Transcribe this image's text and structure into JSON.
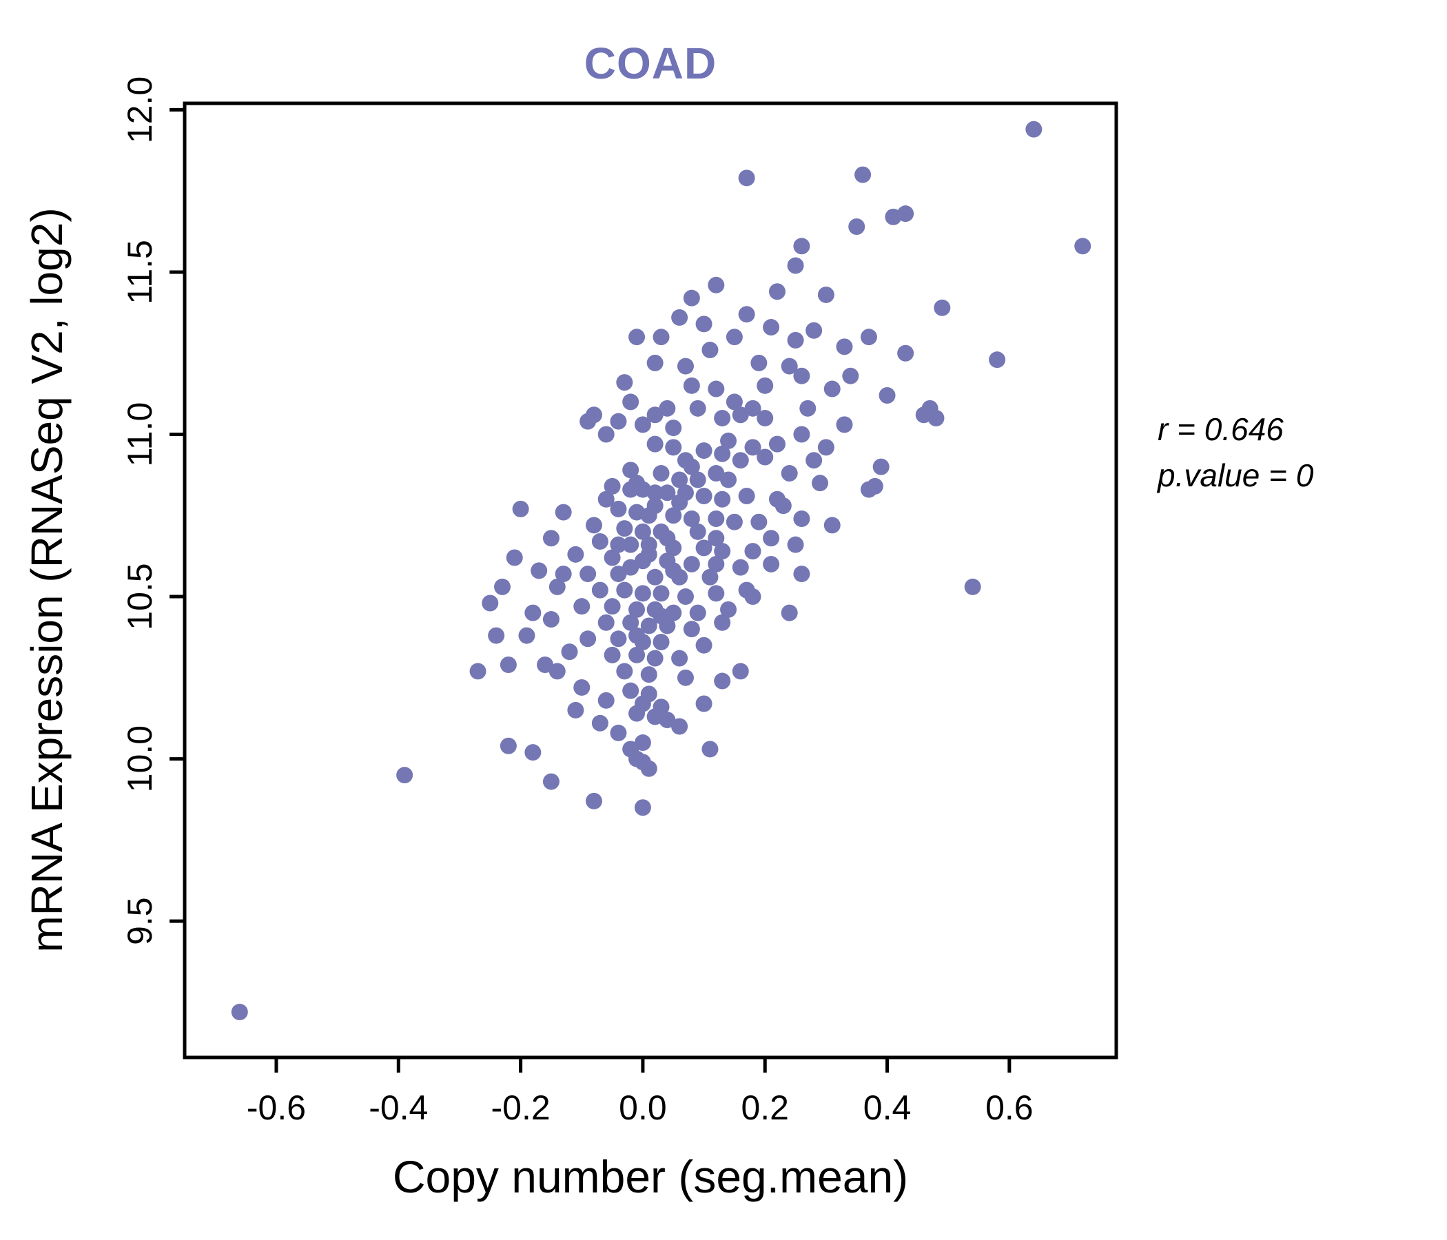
{
  "chart_data": {
    "type": "scatter",
    "title": "COAD",
    "xlabel": "Copy number (seg.mean)",
    "ylabel": "mRNA Expression (RNASeq V2, log2)",
    "xlim": [
      -0.75,
      0.775
    ],
    "ylim": [
      9.08,
      12.02
    ],
    "xticks": [
      -0.6,
      -0.4,
      -0.2,
      0.0,
      0.2,
      0.4,
      0.6
    ],
    "xtick_labels": [
      "-0.6",
      "-0.4",
      "-0.2",
      "0.0",
      "0.2",
      "0.4",
      "0.6"
    ],
    "yticks": [
      9.5,
      10.0,
      10.5,
      11.0,
      11.5,
      12.0
    ],
    "ytick_labels": [
      "9.5",
      "10.0",
      "10.5",
      "11.0",
      "11.5",
      "12.0"
    ],
    "legend": "none",
    "grid": false,
    "point_color": "#7477b3",
    "title_color": "#7073b5",
    "annotation": {
      "line1": "r = 0.646",
      "line2": "p.value = 0"
    },
    "points": [
      [
        -0.66,
        9.22
      ],
      [
        -0.39,
        9.95
      ],
      [
        -0.15,
        9.93
      ],
      [
        -0.08,
        9.87
      ],
      [
        0.0,
        9.85
      ],
      [
        -0.22,
        10.04
      ],
      [
        -0.18,
        10.02
      ],
      [
        -0.02,
        10.03
      ],
      [
        0.11,
        10.03
      ],
      [
        -0.01,
        10.0
      ],
      [
        0.0,
        9.99
      ],
      [
        0.01,
        9.97
      ],
      [
        -0.04,
        10.08
      ],
      [
        0.0,
        10.05
      ],
      [
        -0.07,
        10.11
      ],
      [
        0.06,
        10.1
      ],
      [
        -0.11,
        10.15
      ],
      [
        -0.01,
        10.14
      ],
      [
        0.02,
        10.13
      ],
      [
        0.04,
        10.12
      ],
      [
        -0.06,
        10.18
      ],
      [
        0.0,
        10.17
      ],
      [
        0.03,
        10.16
      ],
      [
        0.1,
        10.17
      ],
      [
        -0.1,
        10.22
      ],
      [
        -0.02,
        10.21
      ],
      [
        0.01,
        10.2
      ],
      [
        0.13,
        10.24
      ],
      [
        -0.27,
        10.27
      ],
      [
        -0.22,
        10.29
      ],
      [
        -0.16,
        10.29
      ],
      [
        -0.14,
        10.27
      ],
      [
        -0.03,
        10.27
      ],
      [
        0.01,
        10.26
      ],
      [
        0.16,
        10.27
      ],
      [
        0.07,
        10.25
      ],
      [
        -0.12,
        10.33
      ],
      [
        -0.05,
        10.32
      ],
      [
        -0.01,
        10.32
      ],
      [
        0.02,
        10.31
      ],
      [
        0.06,
        10.31
      ],
      [
        0.1,
        10.35
      ],
      [
        -0.19,
        10.38
      ],
      [
        -0.09,
        10.37
      ],
      [
        -0.04,
        10.37
      ],
      [
        0.0,
        10.36
      ],
      [
        0.03,
        10.36
      ],
      [
        -0.01,
        10.38
      ],
      [
        -0.24,
        10.38
      ],
      [
        -0.15,
        10.43
      ],
      [
        -0.06,
        10.42
      ],
      [
        -0.02,
        10.42
      ],
      [
        0.01,
        10.41
      ],
      [
        0.04,
        10.41
      ],
      [
        0.08,
        10.4
      ],
      [
        0.13,
        10.42
      ],
      [
        0.03,
        10.44
      ],
      [
        0.24,
        10.45
      ],
      [
        -0.18,
        10.45
      ],
      [
        -0.25,
        10.48
      ],
      [
        -0.1,
        10.47
      ],
      [
        -0.05,
        10.47
      ],
      [
        -0.01,
        10.46
      ],
      [
        0.02,
        10.46
      ],
      [
        0.05,
        10.45
      ],
      [
        0.09,
        10.45
      ],
      [
        0.14,
        10.46
      ],
      [
        -0.23,
        10.53
      ],
      [
        -0.14,
        10.53
      ],
      [
        -0.07,
        10.52
      ],
      [
        -0.03,
        10.52
      ],
      [
        0.0,
        10.51
      ],
      [
        0.03,
        10.51
      ],
      [
        0.07,
        10.5
      ],
      [
        0.12,
        10.51
      ],
      [
        0.17,
        10.52
      ],
      [
        0.54,
        10.53
      ],
      [
        0.18,
        10.5
      ],
      [
        -0.17,
        10.58
      ],
      [
        -0.09,
        10.57
      ],
      [
        -0.04,
        10.57
      ],
      [
        0.02,
        10.56
      ],
      [
        0.06,
        10.56
      ],
      [
        0.11,
        10.56
      ],
      [
        0.26,
        10.57
      ],
      [
        -0.13,
        10.57
      ],
      [
        -0.02,
        10.59
      ],
      [
        0.05,
        10.58
      ],
      [
        -0.11,
        10.63
      ],
      [
        -0.05,
        10.62
      ],
      [
        0.0,
        10.61
      ],
      [
        0.04,
        10.61
      ],
      [
        0.08,
        10.6
      ],
      [
        0.12,
        10.6
      ],
      [
        0.16,
        10.59
      ],
      [
        0.21,
        10.6
      ],
      [
        -0.21,
        10.62
      ],
      [
        0.01,
        10.63
      ],
      [
        -0.15,
        10.68
      ],
      [
        -0.07,
        10.67
      ],
      [
        -0.02,
        10.66
      ],
      [
        0.01,
        10.66
      ],
      [
        0.05,
        10.65
      ],
      [
        0.1,
        10.65
      ],
      [
        0.13,
        10.64
      ],
      [
        0.18,
        10.64
      ],
      [
        0.25,
        10.66
      ],
      [
        -0.04,
        10.66
      ],
      [
        0.0,
        10.7
      ],
      [
        0.04,
        10.68
      ],
      [
        0.12,
        10.68
      ],
      [
        0.21,
        10.68
      ],
      [
        -0.08,
        10.72
      ],
      [
        -0.03,
        10.71
      ],
      [
        0.03,
        10.7
      ],
      [
        0.09,
        10.7
      ],
      [
        0.31,
        10.72
      ],
      [
        -0.2,
        10.77
      ],
      [
        -0.13,
        10.76
      ],
      [
        -0.04,
        10.77
      ],
      [
        -0.01,
        10.76
      ],
      [
        0.01,
        10.75
      ],
      [
        0.05,
        10.75
      ],
      [
        0.08,
        10.74
      ],
      [
        0.12,
        10.74
      ],
      [
        0.15,
        10.73
      ],
      [
        0.19,
        10.73
      ],
      [
        0.26,
        10.74
      ],
      [
        0.02,
        10.78
      ],
      [
        0.06,
        10.79
      ],
      [
        -0.06,
        10.8
      ],
      [
        0.23,
        10.78
      ],
      [
        -0.05,
        10.84
      ],
      [
        -0.02,
        10.83
      ],
      [
        0.0,
        10.83
      ],
      [
        0.02,
        10.82
      ],
      [
        0.04,
        10.82
      ],
      [
        0.07,
        10.82
      ],
      [
        0.1,
        10.81
      ],
      [
        0.13,
        10.8
      ],
      [
        0.17,
        10.81
      ],
      [
        0.22,
        10.8
      ],
      [
        0.37,
        10.83
      ],
      [
        0.38,
        10.84
      ],
      [
        -0.01,
        10.85
      ],
      [
        0.29,
        10.85
      ],
      [
        0.06,
        10.86
      ],
      [
        0.14,
        10.86
      ],
      [
        0.08,
        10.9
      ],
      [
        -0.02,
        10.89
      ],
      [
        0.03,
        10.88
      ],
      [
        0.12,
        10.88
      ],
      [
        0.24,
        10.88
      ],
      [
        0.39,
        10.9
      ],
      [
        0.09,
        10.86
      ],
      [
        0.02,
        10.97
      ],
      [
        0.05,
        10.96
      ],
      [
        0.1,
        10.95
      ],
      [
        0.13,
        10.94
      ],
      [
        0.07,
        10.92
      ],
      [
        0.16,
        10.92
      ],
      [
        0.2,
        10.93
      ],
      [
        0.28,
        10.92
      ],
      [
        0.22,
        10.97
      ],
      [
        0.3,
        10.96
      ],
      [
        0.14,
        10.98
      ],
      [
        0.18,
        10.96
      ],
      [
        -0.06,
        11.0
      ],
      [
        0.26,
        11.0
      ],
      [
        0.0,
        11.03
      ],
      [
        0.05,
        11.02
      ],
      [
        0.33,
        11.03
      ],
      [
        -0.04,
        11.04
      ],
      [
        -0.09,
        11.04
      ],
      [
        0.2,
        11.05
      ],
      [
        0.13,
        11.05
      ],
      [
        0.02,
        11.06
      ],
      [
        0.16,
        11.06
      ],
      [
        0.46,
        11.06
      ],
      [
        0.04,
        11.08
      ],
      [
        0.09,
        11.08
      ],
      [
        -0.08,
        11.06
      ],
      [
        0.18,
        11.08
      ],
      [
        0.47,
        11.08
      ],
      [
        0.48,
        11.05
      ],
      [
        0.27,
        11.08
      ],
      [
        0.15,
        11.1
      ],
      [
        0.4,
        11.12
      ],
      [
        0.31,
        11.14
      ],
      [
        0.12,
        11.14
      ],
      [
        0.08,
        11.15
      ],
      [
        -0.03,
        11.16
      ],
      [
        0.34,
        11.18
      ],
      [
        0.26,
        11.18
      ],
      [
        -0.02,
        11.1
      ],
      [
        0.2,
        11.15
      ],
      [
        0.02,
        11.22
      ],
      [
        0.19,
        11.22
      ],
      [
        0.24,
        11.21
      ],
      [
        0.07,
        11.21
      ],
      [
        0.58,
        11.23
      ],
      [
        0.43,
        11.25
      ],
      [
        0.11,
        11.26
      ],
      [
        0.33,
        11.27
      ],
      [
        -0.01,
        11.3
      ],
      [
        0.03,
        11.3
      ],
      [
        0.25,
        11.29
      ],
      [
        0.28,
        11.32
      ],
      [
        0.21,
        11.33
      ],
      [
        0.15,
        11.3
      ],
      [
        0.37,
        11.3
      ],
      [
        0.1,
        11.34
      ],
      [
        0.06,
        11.36
      ],
      [
        0.17,
        11.37
      ],
      [
        0.49,
        11.39
      ],
      [
        0.08,
        11.42
      ],
      [
        0.3,
        11.43
      ],
      [
        0.22,
        11.44
      ],
      [
        0.12,
        11.46
      ],
      [
        0.25,
        11.52
      ],
      [
        0.26,
        11.58
      ],
      [
        0.72,
        11.58
      ],
      [
        0.35,
        11.64
      ],
      [
        0.41,
        11.67
      ],
      [
        0.43,
        11.68
      ],
      [
        0.36,
        11.8
      ],
      [
        0.17,
        11.79
      ],
      [
        0.64,
        11.94
      ]
    ]
  }
}
